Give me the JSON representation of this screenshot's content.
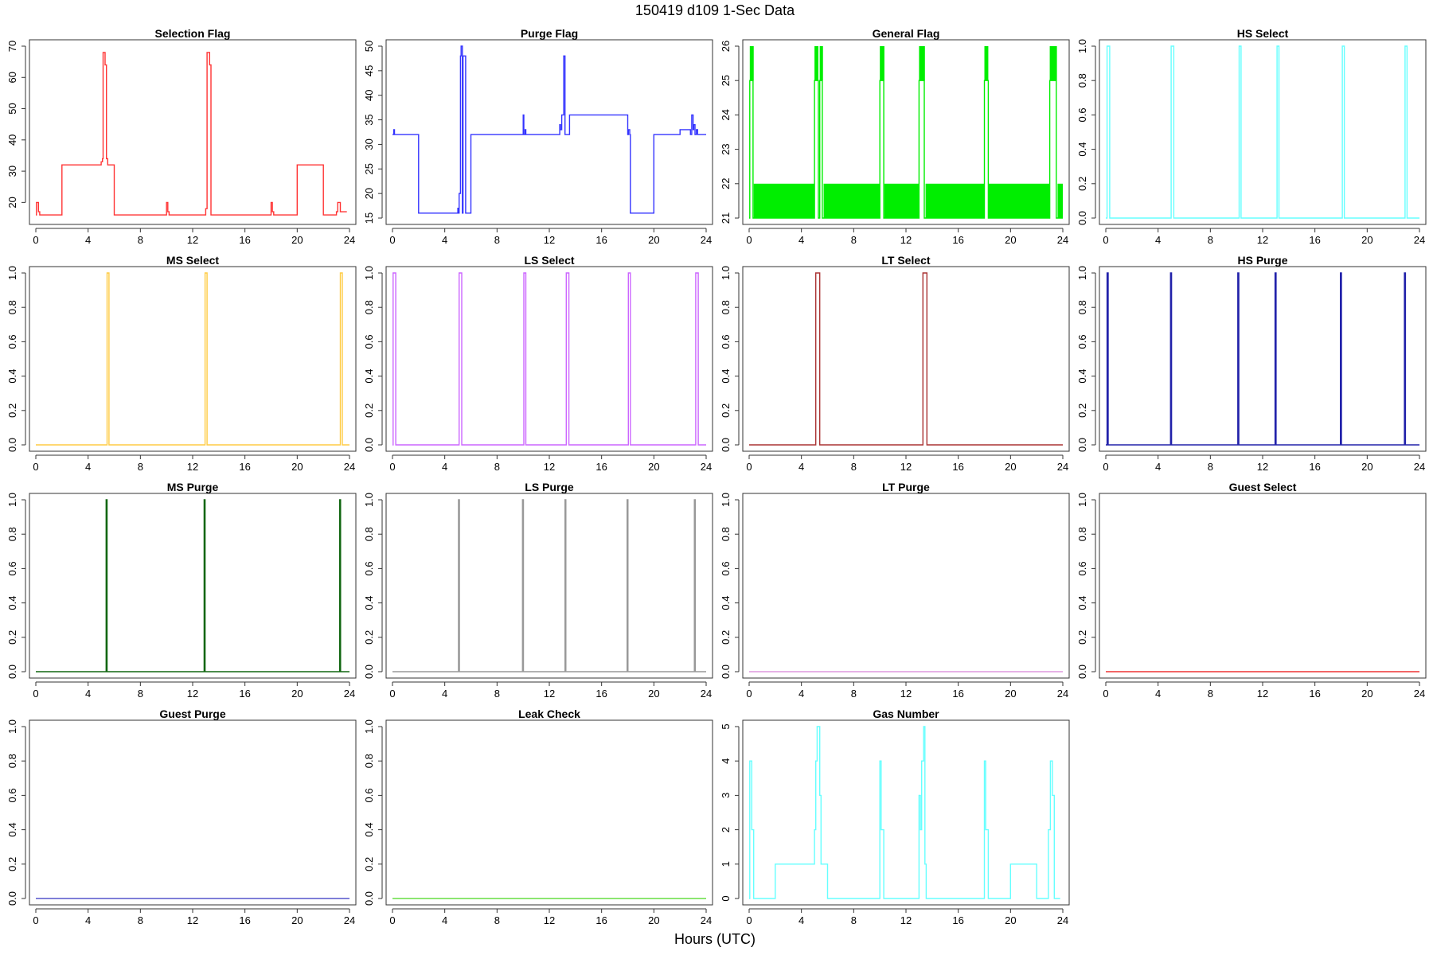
{
  "figure": {
    "title": "150419   d109   1-Sec Data",
    "xlabel": "Hours (UTC)"
  },
  "chart_data": [
    {
      "type": "line",
      "title": "Selection Flag",
      "color": "#ff3333",
      "xlim": [
        0,
        24
      ],
      "xticks": [
        0,
        4,
        8,
        12,
        16,
        20,
        24
      ],
      "ylim": [
        15,
        70
      ],
      "yticks": [
        20,
        30,
        40,
        50,
        60,
        70
      ],
      "ytick_labels": [
        "20",
        "30",
        "40",
        "50",
        "60",
        "70"
      ],
      "x": [
        0,
        0.05,
        0.05,
        0.2,
        0.2,
        0.3,
        0.3,
        2,
        2,
        5,
        5,
        5.1,
        5.1,
        5.15,
        5.15,
        5.3,
        5.3,
        5.4,
        5.4,
        5.5,
        5.5,
        5.55,
        5.55,
        6,
        6,
        10,
        10,
        10.1,
        10.1,
        10.2,
        10.2,
        13,
        13,
        13.1,
        13.1,
        13.3,
        13.3,
        13.4,
        13.4,
        18,
        18,
        18.1,
        18.1,
        18.2,
        18.2,
        20,
        20,
        22,
        22,
        23,
        23,
        23.1,
        23.1,
        23.3,
        23.3,
        23.8
      ],
      "y": [
        16,
        16,
        20,
        20,
        17,
        17,
        16,
        16,
        32,
        32,
        33,
        33,
        34,
        34,
        68,
        68,
        64,
        64,
        34,
        34,
        32,
        32,
        32,
        32,
        16,
        16,
        20,
        20,
        17,
        17,
        16,
        16,
        18,
        18,
        68,
        68,
        64,
        64,
        16,
        16,
        20,
        20,
        17,
        17,
        16,
        16,
        32,
        32,
        16,
        16,
        17,
        17,
        20,
        20,
        17,
        17
      ]
    },
    {
      "type": "line",
      "title": "Purge Flag",
      "color": "#3333ff",
      "xlim": [
        0,
        24
      ],
      "xticks": [
        0,
        4,
        8,
        12,
        16,
        20,
        24
      ],
      "ylim": [
        15,
        50
      ],
      "yticks": [
        15,
        20,
        25,
        30,
        35,
        40,
        45,
        50
      ],
      "ytick_labels": [
        "15",
        "20",
        "25",
        "30",
        "35",
        "40",
        "45",
        "50"
      ],
      "x": [
        0,
        0.1,
        0.1,
        0.15,
        0.15,
        2,
        2,
        5,
        5,
        5.05,
        5.05,
        5.1,
        5.1,
        5.2,
        5.2,
        5.25,
        5.25,
        5.35,
        5.35,
        5.4,
        5.4,
        5.6,
        5.6,
        6,
        6,
        10,
        10,
        10.05,
        10.05,
        10.15,
        10.15,
        10.2,
        10.2,
        12.8,
        12.8,
        12.85,
        12.85,
        12.95,
        12.95,
        13.1,
        13.1,
        13.2,
        13.2,
        13.55,
        13.55,
        18,
        18,
        18.05,
        18.05,
        18.15,
        18.15,
        18.2,
        18.2,
        20,
        20,
        22,
        22,
        22.8,
        22.8,
        22.9,
        22.9,
        23,
        23,
        23.05,
        23.05,
        23.15,
        23.15,
        23.25,
        23.25,
        23.35,
        23.35,
        24
      ],
      "y": [
        32,
        32,
        33,
        33,
        32,
        32,
        16,
        16,
        17,
        17,
        16,
        16,
        20,
        20,
        48,
        48,
        50,
        50,
        16,
        16,
        48,
        48,
        16,
        16,
        32,
        32,
        36,
        36,
        32,
        32,
        33,
        33,
        32,
        32,
        34,
        34,
        33,
        33,
        36,
        36,
        48,
        48,
        32,
        32,
        36,
        36,
        32,
        32,
        33,
        33,
        32,
        32,
        16,
        16,
        32,
        32,
        33,
        33,
        32,
        32,
        36,
        36,
        33,
        33,
        34,
        34,
        32,
        32,
        33,
        33,
        32,
        32
      ]
    },
    {
      "type": "line",
      "title": "General Flag",
      "color": "#00ee00",
      "xlim": [
        0,
        24
      ],
      "xticks": [
        0,
        4,
        8,
        12,
        16,
        20,
        24
      ],
      "ylim": [
        21,
        26
      ],
      "yticks": [
        21,
        22,
        23,
        24,
        25,
        26
      ],
      "ytick_labels": [
        "21",
        "22",
        "23",
        "24",
        "25",
        "26"
      ],
      "x": [
        0,
        0.05,
        0.05,
        0.3,
        0.3,
        5,
        5,
        5.3,
        5.3,
        5.4,
        5.4,
        5.6,
        5.6,
        10,
        10,
        10.3,
        10.3,
        13,
        13,
        13.4,
        13.4,
        18,
        18,
        18.3,
        18.3,
        23,
        23,
        23.5,
        23.5,
        24
      ],
      "y": [
        21,
        21,
        25,
        25,
        21,
        21,
        25,
        25,
        21,
        21,
        25,
        25,
        21,
        21,
        25,
        25,
        21,
        21,
        25,
        25,
        21,
        21,
        25,
        25,
        21,
        21,
        25,
        25,
        21,
        21
      ],
      "shaded_bands": [
        {
          "x0": 0.05,
          "x1": 0.35,
          "y0": 25,
          "y1": 26
        },
        {
          "x0": 0.35,
          "x1": 5.0,
          "y0": 21,
          "y1": 22
        },
        {
          "x0": 5.0,
          "x1": 5.3,
          "y0": 25,
          "y1": 26
        },
        {
          "x0": 5.4,
          "x1": 5.65,
          "y0": 25,
          "y1": 26
        },
        {
          "x0": 5.7,
          "x1": 10.0,
          "y0": 21,
          "y1": 22
        },
        {
          "x0": 10.0,
          "x1": 10.35,
          "y0": 25,
          "y1": 26
        },
        {
          "x0": 10.35,
          "x1": 13.0,
          "y0": 21,
          "y1": 22
        },
        {
          "x0": 13.0,
          "x1": 13.45,
          "y0": 25,
          "y1": 26
        },
        {
          "x0": 13.5,
          "x1": 18.0,
          "y0": 21,
          "y1": 22
        },
        {
          "x0": 18.0,
          "x1": 18.3,
          "y0": 25,
          "y1": 26
        },
        {
          "x0": 18.3,
          "x1": 23.0,
          "y0": 21,
          "y1": 22
        },
        {
          "x0": 23.0,
          "x1": 23.55,
          "y0": 25,
          "y1": 26
        },
        {
          "x0": 23.6,
          "x1": 24.0,
          "y0": 21,
          "y1": 22
        }
      ]
    },
    {
      "type": "line",
      "title": "HS Select",
      "color": "#66ffff",
      "xlim": [
        0,
        24
      ],
      "xticks": [
        0,
        4,
        8,
        12,
        16,
        20,
        24
      ],
      "ylim": [
        0,
        1
      ],
      "yticks": [
        0,
        0.2,
        0.4,
        0.6,
        0.8,
        1.0
      ],
      "ytick_labels": [
        "0.0",
        "0.2",
        "0.4",
        "0.6",
        "0.8",
        "1.0"
      ],
      "x": [
        0,
        0.1,
        0.1,
        0.3,
        0.3,
        5.0,
        5.0,
        5.2,
        5.2,
        10.2,
        10.2,
        10.35,
        10.35,
        13.1,
        13.1,
        13.25,
        13.25,
        18.1,
        18.1,
        18.25,
        18.25,
        22.9,
        22.9,
        23.05,
        23.05,
        24
      ],
      "y": [
        0,
        0,
        1,
        1,
        0,
        0,
        1,
        1,
        0,
        0,
        1,
        1,
        0,
        0,
        1,
        1,
        0,
        0,
        1,
        1,
        0,
        0,
        1,
        1,
        0,
        0
      ]
    },
    {
      "type": "line",
      "title": "MS Select",
      "color": "#ffcc44",
      "xlim": [
        0,
        24
      ],
      "xticks": [
        0,
        4,
        8,
        12,
        16,
        20,
        24
      ],
      "ylim": [
        0,
        1
      ],
      "yticks": [
        0,
        0.2,
        0.4,
        0.6,
        0.8,
        1.0
      ],
      "ytick_labels": [
        "0.0",
        "0.2",
        "0.4",
        "0.6",
        "0.8",
        "1.0"
      ],
      "x": [
        0,
        5.45,
        5.45,
        5.6,
        5.6,
        12.95,
        12.95,
        13.1,
        13.1,
        23.3,
        23.3,
        23.45,
        23.45,
        24
      ],
      "y": [
        0,
        0,
        1,
        1,
        0,
        0,
        1,
        1,
        0,
        0,
        1,
        1,
        0,
        0
      ]
    },
    {
      "type": "line",
      "title": "LS Select",
      "color": "#cc66ff",
      "xlim": [
        0,
        24
      ],
      "xticks": [
        0,
        4,
        8,
        12,
        16,
        20,
        24
      ],
      "ylim": [
        0,
        1
      ],
      "yticks": [
        0,
        0.2,
        0.4,
        0.6,
        0.8,
        1.0
      ],
      "ytick_labels": [
        "0.0",
        "0.2",
        "0.4",
        "0.6",
        "0.8",
        "1.0"
      ],
      "x": [
        0,
        0.05,
        0.05,
        0.25,
        0.25,
        5.1,
        5.1,
        5.3,
        5.3,
        10.05,
        10.05,
        10.2,
        10.2,
        13.3,
        13.3,
        13.5,
        13.5,
        18.05,
        18.05,
        18.2,
        18.2,
        23.2,
        23.2,
        23.4,
        23.4,
        24
      ],
      "y": [
        0,
        0,
        1,
        1,
        0,
        0,
        1,
        1,
        0,
        0,
        1,
        1,
        0,
        0,
        1,
        1,
        0,
        0,
        1,
        1,
        0,
        0,
        1,
        1,
        0,
        0
      ]
    },
    {
      "type": "line",
      "title": "LT Select",
      "color": "#aa3333",
      "xlim": [
        0,
        24
      ],
      "xticks": [
        0,
        4,
        8,
        12,
        16,
        20,
        24
      ],
      "ylim": [
        0,
        1
      ],
      "yticks": [
        0,
        0.2,
        0.4,
        0.6,
        0.8,
        1.0
      ],
      "ytick_labels": [
        "0.0",
        "0.2",
        "0.4",
        "0.6",
        "0.8",
        "1.0"
      ],
      "x": [
        0,
        5.1,
        5.1,
        5.4,
        5.4,
        13.3,
        13.3,
        13.6,
        13.6,
        24
      ],
      "y": [
        0,
        0,
        1,
        1,
        0,
        0,
        1,
        1,
        0,
        0
      ]
    },
    {
      "type": "line",
      "title": "HS Purge",
      "color": "#2222aa",
      "xlim": [
        0,
        24
      ],
      "xticks": [
        0,
        4,
        8,
        12,
        16,
        20,
        24
      ],
      "ylim": [
        0,
        1
      ],
      "yticks": [
        0,
        0.2,
        0.4,
        0.6,
        0.8,
        1.0
      ],
      "ytick_labels": [
        "0.0",
        "0.2",
        "0.4",
        "0.6",
        "0.8",
        "1.0"
      ],
      "x": [
        0,
        0.1,
        0.1,
        0.18,
        0.18,
        4.95,
        4.95,
        5.03,
        5.03,
        10.1,
        10.1,
        10.18,
        10.18,
        12.95,
        12.95,
        13.03,
        13.03,
        17.95,
        17.95,
        18.03,
        18.03,
        22.85,
        22.85,
        22.93,
        22.93,
        24
      ],
      "y": [
        0,
        0,
        1,
        1,
        0,
        0,
        1,
        1,
        0,
        0,
        1,
        1,
        0,
        0,
        1,
        1,
        0,
        0,
        1,
        1,
        0,
        0,
        1,
        1,
        0,
        0
      ]
    },
    {
      "type": "line",
      "title": "MS Purge",
      "color": "#116611",
      "xlim": [
        0,
        24
      ],
      "xticks": [
        0,
        4,
        8,
        12,
        16,
        20,
        24
      ],
      "ylim": [
        0,
        1
      ],
      "yticks": [
        0,
        0.2,
        0.4,
        0.6,
        0.8,
        1.0
      ],
      "ytick_labels": [
        "0.0",
        "0.2",
        "0.4",
        "0.6",
        "0.8",
        "1.0"
      ],
      "x": [
        0,
        5.38,
        5.38,
        5.45,
        5.45,
        12.88,
        12.88,
        12.95,
        12.95,
        23.25,
        23.25,
        23.32,
        23.32,
        24
      ],
      "y": [
        0,
        0,
        1,
        1,
        0,
        0,
        1,
        1,
        0,
        0,
        1,
        1,
        0,
        0
      ]
    },
    {
      "type": "line",
      "title": "LS Purge",
      "color": "#999999",
      "xlim": [
        0,
        24
      ],
      "xticks": [
        0,
        4,
        8,
        12,
        16,
        20,
        24
      ],
      "ylim": [
        0,
        1
      ],
      "yticks": [
        0,
        0.2,
        0.4,
        0.6,
        0.8,
        1.0
      ],
      "ytick_labels": [
        "0.0",
        "0.2",
        "0.4",
        "0.6",
        "0.8",
        "1.0"
      ],
      "x": [
        0,
        5.05,
        5.05,
        5.12,
        5.12,
        9.95,
        9.95,
        10.02,
        10.02,
        13.2,
        13.2,
        13.27,
        13.27,
        17.95,
        17.95,
        18.02,
        18.02,
        23.1,
        23.1,
        23.17,
        23.17,
        24
      ],
      "y": [
        0,
        0,
        1,
        1,
        0,
        0,
        1,
        1,
        0,
        0,
        1,
        1,
        0,
        0,
        1,
        1,
        0,
        0,
        1,
        1,
        0,
        0
      ]
    },
    {
      "type": "line",
      "title": "LT Purge",
      "color": "#dd99dd",
      "xlim": [
        0,
        24
      ],
      "xticks": [
        0,
        4,
        8,
        12,
        16,
        20,
        24
      ],
      "ylim": [
        0,
        1
      ],
      "yticks": [
        0,
        0.2,
        0.4,
        0.6,
        0.8,
        1.0
      ],
      "ytick_labels": [
        "0.0",
        "0.2",
        "0.4",
        "0.6",
        "0.8",
        "1.0"
      ],
      "x": [
        0,
        24
      ],
      "y": [
        0,
        0
      ]
    },
    {
      "type": "line",
      "title": "Guest Select",
      "color": "#ee3333",
      "xlim": [
        0,
        24
      ],
      "xticks": [
        0,
        4,
        8,
        12,
        16,
        20,
        24
      ],
      "ylim": [
        0,
        1
      ],
      "yticks": [
        0,
        0.2,
        0.4,
        0.6,
        0.8,
        1.0
      ],
      "ytick_labels": [
        "0.0",
        "0.2",
        "0.4",
        "0.6",
        "0.8",
        "1.0"
      ],
      "x": [
        0,
        24
      ],
      "y": [
        0,
        0
      ]
    },
    {
      "type": "line",
      "title": "Guest Purge",
      "color": "#5555cc",
      "xlim": [
        0,
        24
      ],
      "xticks": [
        0,
        4,
        8,
        12,
        16,
        20,
        24
      ],
      "ylim": [
        0,
        1
      ],
      "yticks": [
        0,
        0.2,
        0.4,
        0.6,
        0.8,
        1.0
      ],
      "ytick_labels": [
        "0.0",
        "0.2",
        "0.4",
        "0.6",
        "0.8",
        "1.0"
      ],
      "x": [
        0,
        24
      ],
      "y": [
        0,
        0
      ]
    },
    {
      "type": "line",
      "title": "Leak Check",
      "color": "#66dd44",
      "xlim": [
        0,
        24
      ],
      "xticks": [
        0,
        4,
        8,
        12,
        16,
        20,
        24
      ],
      "ylim": [
        0,
        1
      ],
      "yticks": [
        0,
        0.2,
        0.4,
        0.6,
        0.8,
        1.0
      ],
      "ytick_labels": [
        "0.0",
        "0.2",
        "0.4",
        "0.6",
        "0.8",
        "1.0"
      ],
      "x": [
        0,
        24
      ],
      "y": [
        0,
        0
      ]
    },
    {
      "type": "line",
      "title": "Gas Number",
      "color": "#66ffff",
      "xlim": [
        0,
        24
      ],
      "xticks": [
        0,
        4,
        8,
        12,
        16,
        20,
        24
      ],
      "ylim": [
        0,
        5
      ],
      "yticks": [
        0,
        1,
        2,
        3,
        4,
        5
      ],
      "ytick_labels": [
        "0",
        "1",
        "2",
        "3",
        "4",
        "5"
      ],
      "x": [
        0,
        0.05,
        0.05,
        0.2,
        0.2,
        0.35,
        0.35,
        2,
        2,
        5,
        5,
        5.1,
        5.1,
        5.2,
        5.2,
        5.4,
        5.4,
        5.5,
        5.5,
        5.6,
        5.6,
        6,
        6,
        10,
        10,
        10.1,
        10.1,
        10.3,
        10.3,
        13,
        13,
        13.1,
        13.1,
        13.2,
        13.2,
        13.35,
        13.35,
        13.45,
        13.45,
        13.55,
        13.55,
        18,
        18,
        18.1,
        18.1,
        18.3,
        18.3,
        20,
        20,
        22,
        22,
        22.9,
        22.9,
        23.05,
        23.05,
        23.2,
        23.2,
        23.35,
        23.35,
        23.8
      ],
      "y": [
        0,
        0,
        4,
        4,
        2,
        2,
        0,
        0,
        1,
        1,
        2,
        2,
        4,
        4,
        5,
        5,
        3,
        3,
        1,
        1,
        1,
        1,
        0,
        0,
        4,
        4,
        2,
        2,
        0,
        0,
        3,
        3,
        2,
        2,
        4,
        4,
        5,
        5,
        1,
        1,
        0,
        0,
        4,
        4,
        2,
        2,
        0,
        0,
        1,
        1,
        0,
        0,
        2,
        2,
        4,
        4,
        3,
        3,
        0,
        0
      ]
    }
  ]
}
